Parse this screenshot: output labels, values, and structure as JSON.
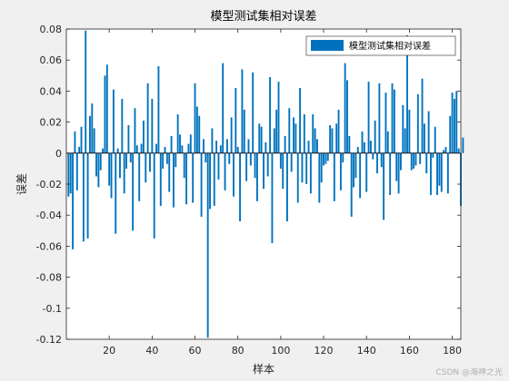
{
  "chart_data": {
    "type": "bar",
    "title": "模型测试集相对误差",
    "xlabel": "样本",
    "ylabel": "误差",
    "xlim": [
      0,
      184
    ],
    "ylim": [
      -0.12,
      0.08
    ],
    "xticks": [
      20,
      40,
      60,
      80,
      100,
      120,
      140,
      160,
      180
    ],
    "yticks": [
      -0.12,
      -0.1,
      -0.08,
      -0.06,
      -0.04,
      -0.02,
      0,
      0.02,
      0.04,
      0.06,
      0.08
    ],
    "ytick_labels": [
      "-0.12",
      "-0.1",
      "-0.08",
      "-0.06",
      "-0.04",
      "-0.02",
      "0",
      "0.02",
      "0.04",
      "0.06",
      "0.08"
    ],
    "grid": false,
    "legend_position": "top-right",
    "series": [
      {
        "name": "模型测试集相对误差",
        "color": "#0072BD",
        "values": [
          -0.028,
          -0.026,
          -0.062,
          0.014,
          -0.024,
          0.004,
          0.017,
          -0.057,
          0.079,
          -0.055,
          0.024,
          0.032,
          0.016,
          -0.015,
          -0.022,
          -0.011,
          0.003,
          0.05,
          0.057,
          -0.021,
          -0.029,
          0.041,
          -0.052,
          0.003,
          -0.016,
          0.035,
          -0.026,
          -0.01,
          0.018,
          -0.006,
          -0.05,
          0.029,
          0.005,
          -0.031,
          0.006,
          0.021,
          -0.019,
          0.045,
          -0.012,
          0.035,
          -0.055,
          0.006,
          0.056,
          -0.034,
          -0.01,
          0.004,
          -0.007,
          -0.025,
          0.011,
          -0.035,
          -0.009,
          0.025,
          0.012,
          0.005,
          -0.016,
          -0.033,
          0.006,
          0.012,
          -0.032,
          0.045,
          0.03,
          0.024,
          -0.041,
          0.009,
          -0.006,
          -0.119,
          -0.036,
          0.016,
          -0.034,
          0.008,
          -0.017,
          0.005,
          0.058,
          -0.024,
          0.009,
          -0.007,
          0.023,
          -0.028,
          0.042,
          0.004,
          -0.044,
          0.054,
          0.028,
          -0.018,
          0.009,
          -0.008,
          0.052,
          -0.016,
          -0.031,
          0.019,
          0.017,
          -0.023,
          0.007,
          -0.015,
          0.049,
          -0.058,
          0.016,
          0.028,
          0.046,
          -0.01,
          -0.023,
          0.011,
          -0.044,
          0.029,
          -0.012,
          0.023,
          0.019,
          -0.032,
          0.042,
          -0.019,
          0.025,
          -0.02,
          0.008,
          -0.026,
          0.025,
          0.016,
          0.009,
          -0.032,
          -0.019,
          -0.008,
          -0.007,
          -0.005,
          0.018,
          0.016,
          -0.031,
          0.019,
          0.028,
          -0.024,
          -0.006,
          0.058,
          0.047,
          0.011,
          -0.041,
          -0.022,
          -0.016,
          0.004,
          -0.029,
          0.014,
          0.007,
          -0.025,
          0.046,
          0.008,
          -0.004,
          0.021,
          -0.013,
          0.045,
          -0.009,
          -0.043,
          0.039,
          0.014,
          -0.027,
          0.045,
          0.041,
          -0.018,
          -0.026,
          -0.011,
          0.031,
          0.016,
          0.076,
          0.028,
          -0.011,
          -0.01,
          -0.008,
          0.038,
          -0.007,
          0.048,
          0.019,
          -0.013,
          0.027,
          -0.027,
          -0.003,
          0.017,
          -0.027,
          -0.021,
          -0.025,
          0.002,
          0.004,
          -0.026,
          0.024,
          0.039,
          0.035,
          0.04,
          0.003,
          -0.034,
          0.01
        ]
      }
    ]
  },
  "watermark": "CSDN @海神之光"
}
